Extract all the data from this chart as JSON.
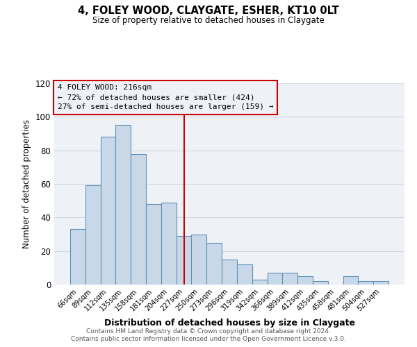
{
  "title": "4, FOLEY WOOD, CLAYGATE, ESHER, KT10 0LT",
  "subtitle": "Size of property relative to detached houses in Claygate",
  "xlabel": "Distribution of detached houses by size in Claygate",
  "ylabel": "Number of detached properties",
  "categories": [
    "66sqm",
    "89sqm",
    "112sqm",
    "135sqm",
    "158sqm",
    "181sqm",
    "204sqm",
    "227sqm",
    "250sqm",
    "273sqm",
    "296sqm",
    "319sqm",
    "342sqm",
    "366sqm",
    "389sqm",
    "412sqm",
    "435sqm",
    "458sqm",
    "481sqm",
    "504sqm",
    "527sqm"
  ],
  "values": [
    33,
    59,
    88,
    95,
    78,
    48,
    49,
    29,
    30,
    25,
    15,
    12,
    3,
    7,
    7,
    5,
    2,
    0,
    5,
    2,
    2
  ],
  "bar_color": "#c8d8e8",
  "bar_edge_color": "#6090b8",
  "grid_color": "#d0d8e0",
  "vline_x": 7.0,
  "vline_color": "#cc0000",
  "annotation_box_edge": "#cc0000",
  "annotation_lines": [
    "4 FOLEY WOOD: 216sqm",
    "← 72% of detached houses are smaller (424)",
    "27% of semi-detached houses are larger (159) →"
  ],
  "ylim": [
    0,
    120
  ],
  "yticks": [
    0,
    20,
    40,
    60,
    80,
    100,
    120
  ],
  "footer_line1": "Contains HM Land Registry data © Crown copyright and database right 2024.",
  "footer_line2": "Contains public sector information licensed under the Open Government Licence v.3.0.",
  "bg_color": "#ffffff",
  "plot_bg_color": "#eef2f7"
}
